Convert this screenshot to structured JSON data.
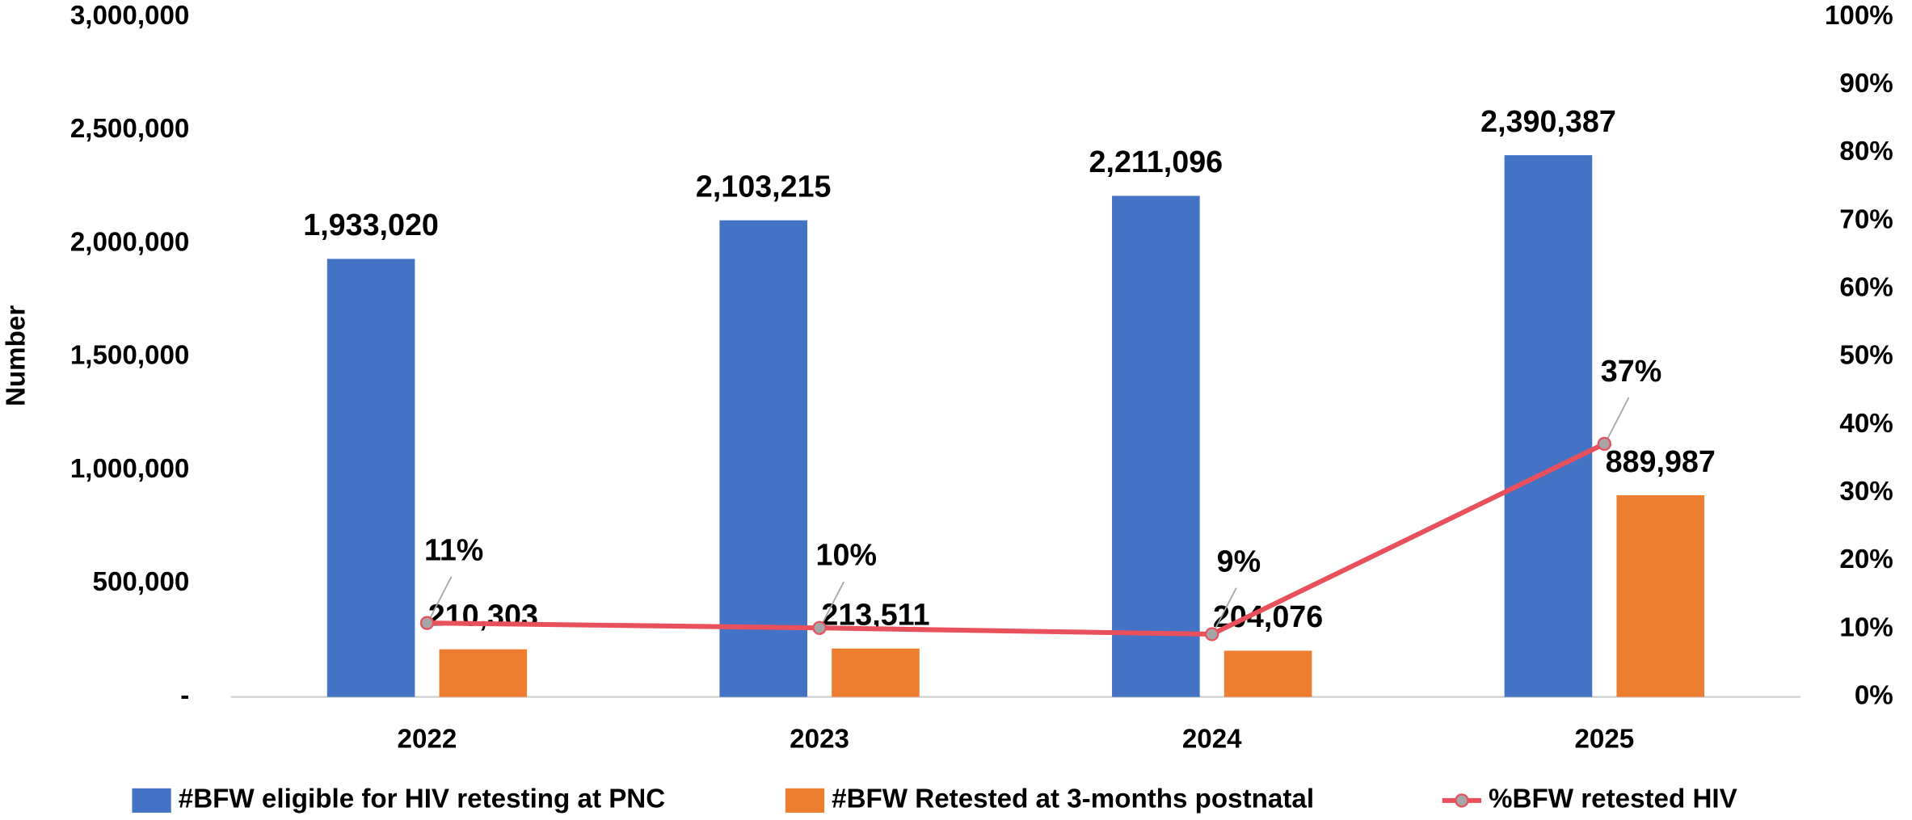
{
  "chart_data": {
    "type": "bar",
    "categories": [
      "2022",
      "2023",
      "2024",
      "2025"
    ],
    "ylabel": "Number",
    "ylim": [
      0,
      3000000
    ],
    "yticks": [
      {
        "value": 0,
        "label": "-"
      },
      {
        "value": 500000,
        "label": "500,000"
      },
      {
        "value": 1000000,
        "label": "1,000,000"
      },
      {
        "value": 1500000,
        "label": "1,500,000"
      },
      {
        "value": 2000000,
        "label": "2,000,000"
      },
      {
        "value": 2500000,
        "label": "2,500,000"
      },
      {
        "value": 3000000,
        "label": "3,000,000"
      }
    ],
    "y2lim": [
      0,
      100
    ],
    "y2ticks": [
      {
        "value": 0,
        "label": "0%"
      },
      {
        "value": 10,
        "label": "10%"
      },
      {
        "value": 20,
        "label": "20%"
      },
      {
        "value": 30,
        "label": "30%"
      },
      {
        "value": 40,
        "label": "40%"
      },
      {
        "value": 50,
        "label": "50%"
      },
      {
        "value": 60,
        "label": "60%"
      },
      {
        "value": 70,
        "label": "70%"
      },
      {
        "value": 80,
        "label": "80%"
      },
      {
        "value": 90,
        "label": "90%"
      },
      {
        "value": 100,
        "label": "100%"
      }
    ],
    "legend": "bottom",
    "grid": false,
    "series": [
      {
        "name": "#BFW eligible for HIV retesting at PNC",
        "type": "bar",
        "color": "#4472c4",
        "values": [
          1933020,
          2103215,
          2211096,
          2390387
        ],
        "value_labels": [
          "1,933,020",
          "2,103,215",
          "2,211,096",
          "2,390,387"
        ]
      },
      {
        "name": "#BFW Retested at 3-months postnatal",
        "type": "bar",
        "color": "#ed7d31",
        "values": [
          210303,
          213511,
          204076,
          889987
        ],
        "value_labels": [
          "210,303",
          "213,511",
          "204,076",
          "889,987"
        ]
      },
      {
        "name": "%BFW retested HIV",
        "type": "line",
        "axis": "y2",
        "color": "#e8505b",
        "values": [
          10.88,
          10.15,
          9.23,
          37.23
        ],
        "value_labels": [
          "11%",
          "10%",
          "9%",
          "37%"
        ]
      }
    ]
  }
}
